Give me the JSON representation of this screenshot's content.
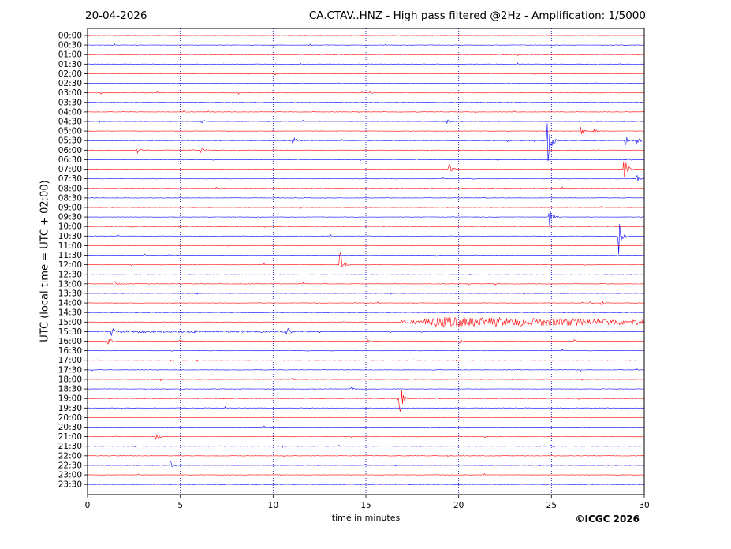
{
  "header": {
    "date": "20-04-2026",
    "title": "CA.CTAV..HNZ - High pass filtered @2Hz - Amplification: 1/5000"
  },
  "footer": {
    "copyright": "©ICGC 2026"
  },
  "chart_data": {
    "type": "line",
    "title": "CA.CTAV..HNZ - High pass filtered @2Hz - Amplification: 1/5000",
    "xlabel": "time in minutes",
    "ylabel": "UTC (local time = UTC + 02:00)",
    "xlim": [
      0,
      30
    ],
    "x_ticks": [
      0,
      5,
      10,
      15,
      20,
      25,
      30
    ],
    "vertical_gridlines_at": [
      5,
      10,
      15,
      20,
      25
    ],
    "trace_colors": [
      "#ff0000",
      "#0000ff"
    ],
    "rows": [
      "00:00",
      "00:30",
      "01:00",
      "01:30",
      "02:00",
      "02:30",
      "03:00",
      "03:30",
      "04:00",
      "04:30",
      "05:00",
      "05:30",
      "06:00",
      "06:30",
      "07:00",
      "07:30",
      "08:00",
      "08:30",
      "09:00",
      "09:30",
      "10:00",
      "10:30",
      "11:00",
      "11:30",
      "12:00",
      "12:30",
      "13:00",
      "13:30",
      "14:00",
      "14:30",
      "15:00",
      "15:30",
      "16:00",
      "16:30",
      "17:00",
      "17:30",
      "18:00",
      "18:30",
      "19:00",
      "19:30",
      "20:00",
      "20:30",
      "21:00",
      "21:30",
      "22:00",
      "22:30",
      "23:00",
      "23:30"
    ],
    "events": [
      {
        "row": "04:30",
        "minute": 6.2,
        "amp": 0.25
      },
      {
        "row": "04:30",
        "minute": 19.4,
        "amp": 0.25
      },
      {
        "row": "05:00",
        "minute": 26.6,
        "amp": 0.45
      },
      {
        "row": "05:00",
        "minute": 27.3,
        "amp": 0.3
      },
      {
        "row": "05:30",
        "minute": 11.1,
        "amp": 0.35
      },
      {
        "row": "05:30",
        "minute": 24.8,
        "amp": 2.5
      },
      {
        "row": "05:30",
        "minute": 29.0,
        "amp": 0.6
      },
      {
        "row": "05:30",
        "minute": 29.6,
        "amp": 0.5
      },
      {
        "row": "06:00",
        "minute": 2.7,
        "amp": 0.3
      },
      {
        "row": "06:00",
        "minute": 6.1,
        "amp": 0.5
      },
      {
        "row": "07:00",
        "minute": 19.5,
        "amp": 0.6
      },
      {
        "row": "07:00",
        "minute": 28.9,
        "amp": 1.5
      },
      {
        "row": "07:30",
        "minute": 29.6,
        "amp": 0.4
      },
      {
        "row": "09:00",
        "minute": 11.5,
        "amp": 0.2
      },
      {
        "row": "09:30",
        "minute": 24.9,
        "amp": 1.2
      },
      {
        "row": "10:30",
        "minute": 28.6,
        "amp": 2.6
      },
      {
        "row": "12:00",
        "minute": 13.6,
        "amp": 1.5
      },
      {
        "row": "13:00",
        "minute": 1.5,
        "amp": 0.25
      },
      {
        "row": "14:00",
        "minute": 27.7,
        "amp": 0.3
      },
      {
        "row": "15:30",
        "minute": 1.3,
        "amp": 0.5
      },
      {
        "row": "15:30",
        "minute": 5.7,
        "amp": 0.4
      },
      {
        "row": "15:30",
        "minute": 10.7,
        "amp": 0.7
      },
      {
        "row": "16:00",
        "minute": 1.1,
        "amp": 0.5
      },
      {
        "row": "16:00",
        "minute": 4.9,
        "amp": 0.25
      },
      {
        "row": "16:00",
        "minute": 15.1,
        "amp": 0.35
      },
      {
        "row": "16:00",
        "minute": 20.0,
        "amp": 0.35
      },
      {
        "row": "16:00",
        "minute": 26.2,
        "amp": 0.25
      },
      {
        "row": "18:30",
        "minute": 14.2,
        "amp": 0.2
      },
      {
        "row": "19:00",
        "minute": 16.8,
        "amp": 1.8
      },
      {
        "row": "21:00",
        "minute": 3.7,
        "amp": 0.35
      },
      {
        "row": "22:30",
        "minute": 4.5,
        "amp": 0.35
      }
    ],
    "tremor_segments": [
      {
        "row": "15:00",
        "from": 16.9,
        "to": 30.0,
        "amp": 0.55
      },
      {
        "row": "15:30",
        "from": 0.0,
        "to": 12.0,
        "amp": 0.12
      }
    ],
    "grid": true
  }
}
